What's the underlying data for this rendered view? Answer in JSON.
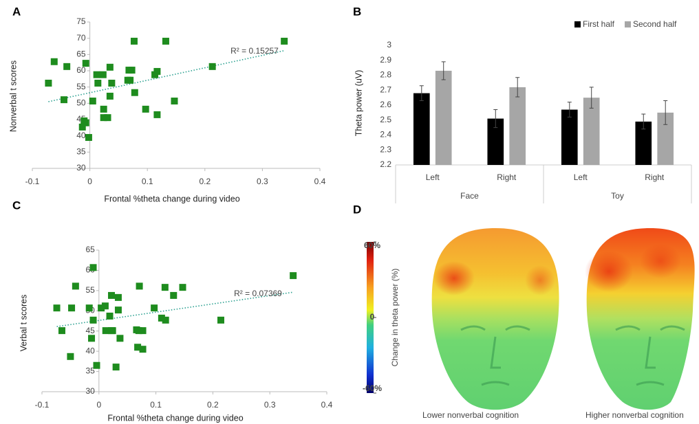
{
  "chart_data": [
    {
      "type": "scatter",
      "panel": "A",
      "xlabel": "Frontal %theta change during video",
      "ylabel": "Nonverbal t scores",
      "annotation": "R² = 0.15257",
      "color": "#1e8c1e",
      "x": [
        -0.072,
        -0.062,
        -0.04,
        -0.045,
        -0.007,
        -0.01,
        -0.013,
        -0.007,
        -0.002,
        0.005,
        0.012,
        0.023,
        0.014,
        0.035,
        0.038,
        0.035,
        0.024,
        0.024,
        0.031,
        0.068,
        0.073,
        0.066,
        0.07,
        0.077,
        0.078,
        0.097,
        0.113,
        0.117,
        0.117,
        0.132,
        0.147,
        0.213,
        0.338
      ],
      "y": [
        56.2,
        62.8,
        61.3,
        51.1,
        62.3,
        44.6,
        42.7,
        44.0,
        39.5,
        50.7,
        58.8,
        58.8,
        56.2,
        61.1,
        56.2,
        52.2,
        48.2,
        45.6,
        45.6,
        60.2,
        60.2,
        57.1,
        57.1,
        69.1,
        53.3,
        48.2,
        58.8,
        59.8,
        46.5,
        69.1,
        50.7,
        61.3,
        69.1
      ],
      "trendline": {
        "x": [
          -0.072,
          0.338
        ],
        "y": [
          50.5,
          66.2
        ]
      },
      "xlim": [
        -0.1,
        0.4
      ],
      "xticks": [
        -0.1,
        0,
        0.1,
        0.2,
        0.3,
        0.4
      ],
      "ylim": [
        30,
        75
      ],
      "yticks": [
        30,
        35,
        40,
        45,
        50,
        55,
        60,
        65,
        70,
        75
      ]
    },
    {
      "type": "bar",
      "panel": "B",
      "ylabel": "Theta power (uV)",
      "categories": [
        "Left",
        "Right",
        "Left",
        "Right"
      ],
      "groups": [
        "Face",
        "Toy"
      ],
      "series": [
        {
          "name": "First half",
          "color": "#000000",
          "values": [
            2.68,
            2.51,
            2.57,
            2.49
          ],
          "errors": [
            0.05,
            0.06,
            0.05,
            0.05
          ]
        },
        {
          "name": "Second half",
          "color": "#a6a6a6",
          "values": [
            2.83,
            2.72,
            2.65,
            2.55
          ],
          "errors": [
            0.06,
            0.065,
            0.07,
            0.08
          ]
        }
      ],
      "ylim": [
        2.2,
        3
      ],
      "yticks": [
        2.2,
        2.3,
        2.4,
        2.5,
        2.6,
        2.7,
        2.8,
        2.9,
        3
      ]
    },
    {
      "type": "scatter",
      "panel": "C",
      "xlabel": "Frontal %theta change during video",
      "ylabel": "Verbal  t scores",
      "annotation": "R² = 0.07369",
      "color": "#1e8c1e",
      "x": [
        -0.074,
        -0.065,
        -0.048,
        -0.041,
        -0.05,
        -0.01,
        -0.01,
        -0.017,
        -0.013,
        -0.004,
        0.004,
        0.011,
        0.012,
        0.022,
        0.022,
        0.019,
        0.034,
        0.034,
        0.037,
        0.03,
        0.024,
        0.066,
        0.07,
        0.077,
        0.068,
        0.077,
        0.071,
        0.097,
        0.11,
        0.117,
        0.116,
        0.131,
        0.147,
        0.214,
        0.341
      ],
      "y": [
        50.7,
        45.1,
        50.7,
        56.1,
        38.7,
        60.7,
        47.7,
        50.7,
        43.2,
        36.5,
        50.7,
        51.2,
        45.1,
        45.1,
        53.8,
        48.7,
        50.2,
        53.3,
        43.2,
        36.1,
        45.1,
        45.3,
        45.1,
        45.1,
        41.0,
        40.5,
        56.1,
        50.7,
        48.2,
        47.7,
        55.8,
        53.8,
        55.8,
        47.7,
        58.7
      ],
      "trendline": {
        "x": [
          -0.074,
          0.341
        ],
        "y": [
          46.1,
          54.6
        ]
      },
      "xlim": [
        -0.1,
        0.4
      ],
      "xticks": [
        -0.1,
        0,
        0.1,
        0.2,
        0.3,
        0.4
      ],
      "ylim": [
        30,
        65
      ],
      "yticks": [
        30,
        35,
        40,
        45,
        50,
        55,
        60,
        65
      ]
    }
  ],
  "panel_d": {
    "panel": "D",
    "colorbar": {
      "label": "Change in theta power (%)",
      "lim": [
        -60,
        60
      ],
      "ticks": [
        {
          "value": 60,
          "label": "60%"
        },
        0,
        {
          "value": -60,
          "label": "-60%"
        }
      ]
    },
    "captions": [
      "Lower nonverbal cognition",
      "Higher nonverbal cognition"
    ]
  }
}
